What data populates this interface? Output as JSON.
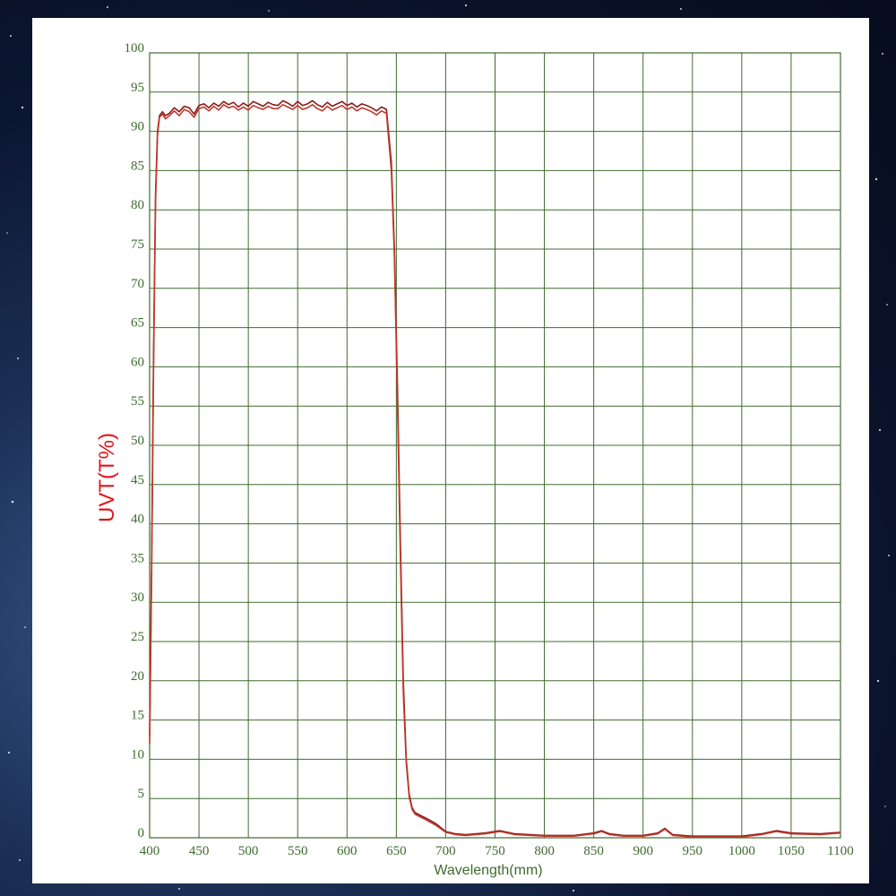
{
  "chart_data": {
    "type": "line",
    "title": "",
    "xlabel": "Wavelength(mm)",
    "ylabel": "UVT(T%)",
    "xlim": [
      400,
      1100
    ],
    "ylim": [
      0,
      100
    ],
    "xticks": [
      "400",
      "450",
      "500",
      "550",
      "600",
      "650",
      "700",
      "750",
      "800",
      "850",
      "900",
      "950",
      "1000",
      "1050",
      "1100"
    ],
    "yticks": [
      "0",
      "5",
      "10",
      "15",
      "20",
      "25",
      "30",
      "35",
      "40",
      "45",
      "50",
      "55",
      "60",
      "65",
      "70",
      "75",
      "80",
      "85",
      "90",
      "95",
      "100"
    ],
    "grid": true,
    "colors": {
      "grid": "#3f6b2f",
      "series_a": "#8b1a1a",
      "series_b": "#c0392b",
      "ylabel": "#e0141c"
    },
    "series": [
      {
        "x": [
          400,
          402,
          404,
          406,
          408,
          410,
          413,
          416,
          420,
          425,
          430,
          435,
          440,
          445,
          450,
          455,
          460,
          465,
          470,
          475,
          480,
          485,
          490,
          495,
          500,
          505,
          510,
          515,
          520,
          525,
          530,
          535,
          540,
          545,
          550,
          555,
          560,
          565,
          570,
          575,
          580,
          585,
          590,
          595,
          600,
          605,
          610,
          615,
          620,
          625,
          630,
          635,
          640,
          645,
          648,
          651,
          654,
          657,
          660,
          663,
          666,
          669,
          672,
          675,
          680,
          690,
          700,
          710,
          720,
          740,
          755,
          770,
          800,
          830,
          850,
          858,
          866,
          880,
          900,
          915,
          922,
          930,
          950,
          1000,
          1020,
          1035,
          1050,
          1080,
          1100
        ],
        "values": [
          13,
          35,
          62,
          82,
          90,
          92,
          92.5,
          92,
          92.3,
          93,
          92.5,
          93.2,
          93,
          92.2,
          93.3,
          93.5,
          93,
          93.6,
          93.2,
          93.8,
          93.4,
          93.7,
          93.1,
          93.6,
          93.2,
          93.8,
          93.5,
          93.2,
          93.7,
          93.4,
          93.3,
          93.9,
          93.6,
          93.2,
          93.8,
          93.3,
          93.5,
          93.9,
          93.4,
          93.1,
          93.7,
          93.2,
          93.5,
          93.8,
          93.3,
          93.6,
          93.1,
          93.5,
          93.3,
          93.0,
          92.6,
          93.1,
          92.8,
          86,
          75,
          58,
          38,
          20,
          10,
          5.5,
          3.8,
          3.2,
          3.0,
          2.8,
          2.5,
          1.8,
          0.8,
          0.5,
          0.4,
          0.6,
          0.9,
          0.5,
          0.3,
          0.3,
          0.6,
          0.9,
          0.5,
          0.3,
          0.3,
          0.6,
          1.2,
          0.4,
          0.2,
          0.2,
          0.5,
          0.9,
          0.6,
          0.5,
          0.7
        ]
      },
      {
        "x": [
          400,
          402,
          404,
          406,
          408,
          410,
          413,
          416,
          420,
          425,
          430,
          435,
          440,
          445,
          450,
          455,
          460,
          465,
          470,
          475,
          480,
          485,
          490,
          495,
          500,
          505,
          510,
          515,
          520,
          525,
          530,
          535,
          540,
          545,
          550,
          555,
          560,
          565,
          570,
          575,
          580,
          585,
          590,
          595,
          600,
          605,
          610,
          615,
          620,
          625,
          630,
          635,
          640,
          645,
          648,
          651,
          654,
          657,
          660,
          663,
          666,
          669,
          672,
          675,
          680,
          690,
          700,
          710,
          720,
          740,
          755,
          770,
          800,
          830,
          850,
          858,
          866,
          880,
          900,
          915,
          922,
          930,
          950,
          1000,
          1020,
          1035,
          1050,
          1080,
          1100
        ],
        "values": [
          12,
          33,
          60,
          81,
          89.5,
          91.8,
          92.2,
          91.6,
          92.0,
          92.6,
          92.0,
          92.8,
          92.5,
          91.8,
          92.9,
          93.1,
          92.6,
          93.2,
          92.7,
          93.4,
          93.0,
          93.2,
          92.7,
          93.1,
          92.7,
          93.3,
          93.0,
          92.8,
          93.2,
          92.9,
          92.9,
          93.4,
          93.1,
          92.8,
          93.3,
          92.8,
          93.0,
          93.4,
          92.9,
          92.6,
          93.2,
          92.7,
          93.0,
          93.3,
          92.8,
          93.1,
          92.6,
          93.0,
          92.8,
          92.5,
          92.1,
          92.6,
          92.3,
          85,
          74,
          56,
          36,
          18.5,
          9.5,
          5.2,
          3.6,
          3.0,
          2.8,
          2.6,
          2.3,
          1.6,
          0.7,
          0.4,
          0.3,
          0.5,
          0.8,
          0.4,
          0.2,
          0.2,
          0.5,
          0.8,
          0.4,
          0.2,
          0.2,
          0.5,
          1.1,
          0.3,
          0.1,
          0.1,
          0.4,
          0.8,
          0.5,
          0.4,
          0.6
        ]
      }
    ]
  }
}
